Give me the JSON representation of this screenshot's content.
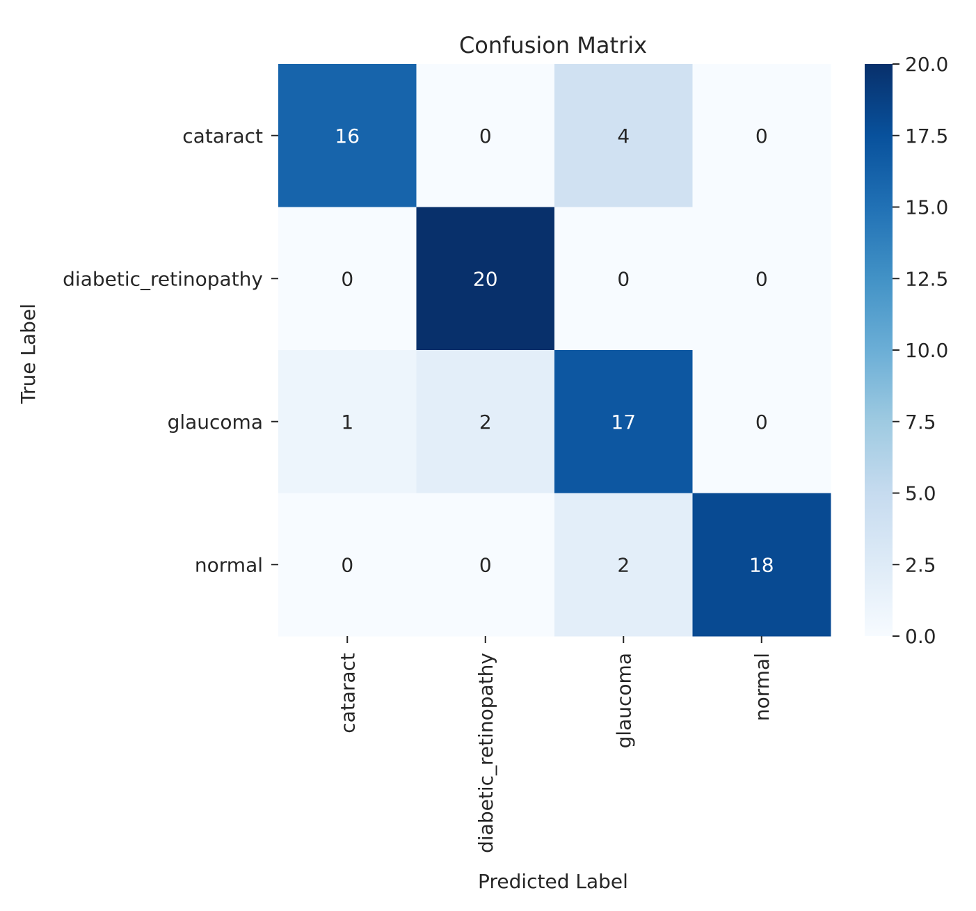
{
  "chart_data": {
    "type": "heatmap",
    "title": "Confusion Matrix",
    "xlabel": "Predicted Label",
    "ylabel": "True Label",
    "x_categories": [
      "cataract",
      "diabetic_retinopathy",
      "glaucoma",
      "normal"
    ],
    "y_categories": [
      "cataract",
      "diabetic_retinopathy",
      "glaucoma",
      "normal"
    ],
    "matrix": [
      [
        16,
        0,
        4,
        0
      ],
      [
        0,
        20,
        0,
        0
      ],
      [
        1,
        2,
        17,
        0
      ],
      [
        0,
        0,
        2,
        18
      ]
    ],
    "colormap": "Blues",
    "colorbar": {
      "range": [
        0,
        20
      ],
      "ticks": [
        "0.0",
        "2.5",
        "5.0",
        "7.5",
        "10.0",
        "12.5",
        "15.0",
        "17.5",
        "20.0"
      ]
    }
  }
}
